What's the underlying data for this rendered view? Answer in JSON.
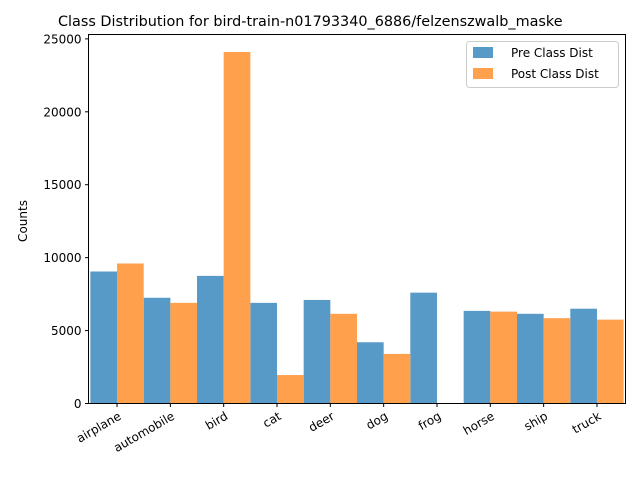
{
  "chart_data": {
    "type": "bar",
    "title": "Class Distribution for bird-train-n01793340_6886/felzenszwalb_maske",
    "xlabel": "",
    "ylabel": "Counts",
    "categories": [
      "airplane",
      "automobile",
      "bird",
      "cat",
      "deer",
      "dog",
      "frog",
      "horse",
      "ship",
      "truck"
    ],
    "series": [
      {
        "name": "Pre Class Dist",
        "color": "#5799c7",
        "values": [
          9050,
          7250,
          8750,
          6900,
          7100,
          4200,
          7600,
          6350,
          6150,
          6500
        ]
      },
      {
        "name": "Post Class Dist",
        "color": "#ffa04c",
        "values": [
          9600,
          6900,
          24100,
          1950,
          6150,
          3400,
          0,
          6300,
          5850,
          5750
        ]
      }
    ],
    "ylim": [
      0,
      25300
    ],
    "yticks": [
      0,
      5000,
      10000,
      15000,
      20000,
      25000
    ],
    "legend_position": "top-right",
    "grid": false
  }
}
